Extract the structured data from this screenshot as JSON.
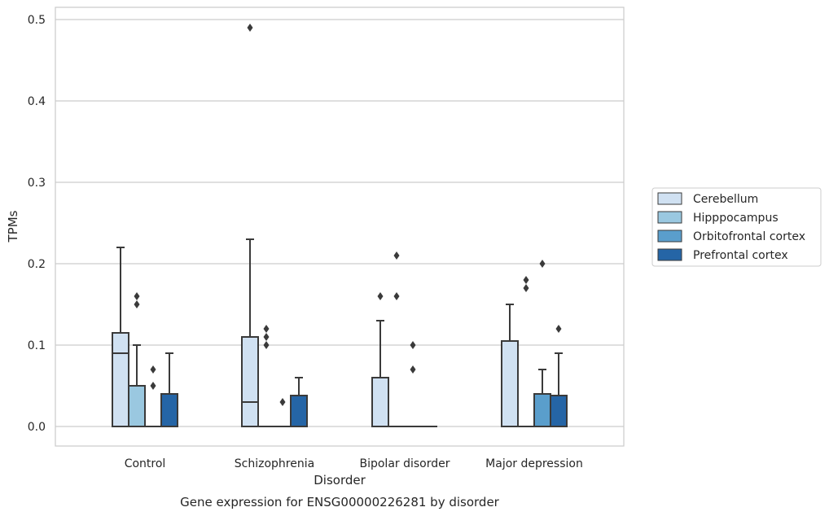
{
  "caption": "Gene expression for ENSG00000226281 by disorder",
  "chart_data": {
    "type": "box",
    "xlabel": "Disorder",
    "ylabel": "TPMs",
    "ylim": [
      -0.024,
      0.515
    ],
    "yticks": [
      0.0,
      0.1,
      0.2,
      0.3,
      0.4,
      0.5
    ],
    "ytick_labels": [
      "0.0",
      "0.1",
      "0.2",
      "0.3",
      "0.4",
      "0.5"
    ],
    "grid": "horizontal",
    "legend_position": "right",
    "categories": [
      "Control",
      "Schizophrenia",
      "Bipolar disorder",
      "Major depression"
    ],
    "series": [
      {
        "name": "Cerebellum",
        "color": "#d0e1f2",
        "boxes": [
          {
            "q1": 0,
            "median": 0.09,
            "q3": 0.115,
            "whisker_low": 0,
            "whisker_high": 0.22,
            "outliers": []
          },
          {
            "q1": 0,
            "median": 0.03,
            "q3": 0.11,
            "whisker_low": 0,
            "whisker_high": 0.23,
            "outliers": [
              0.49
            ]
          },
          {
            "q1": 0,
            "median": 0,
            "q3": 0.06,
            "whisker_low": 0,
            "whisker_high": 0.13,
            "outliers": [
              0.16
            ]
          },
          {
            "q1": 0,
            "median": 0,
            "q3": 0.105,
            "whisker_low": 0,
            "whisker_high": 0.15,
            "outliers": []
          }
        ]
      },
      {
        "name": "Hipppocampus",
        "color": "#9ac8e0",
        "boxes": [
          {
            "q1": 0,
            "median": 0,
            "q3": 0.05,
            "whisker_low": 0,
            "whisker_high": 0.1,
            "outliers": [
              0.15,
              0.16
            ]
          },
          {
            "q1": 0,
            "median": 0,
            "q3": 0,
            "whisker_low": 0,
            "whisker_high": 0,
            "outliers": [
              0.1,
              0.11,
              0.12
            ]
          },
          {
            "q1": 0,
            "median": 0,
            "q3": 0,
            "whisker_low": 0,
            "whisker_high": 0,
            "outliers": [
              0.16,
              0.21
            ]
          },
          {
            "q1": 0,
            "median": 0,
            "q3": 0,
            "whisker_low": 0,
            "whisker_high": 0,
            "outliers": [
              0.17,
              0.18
            ]
          }
        ]
      },
      {
        "name": "Orbitofrontal cortex",
        "color": "#5a9ecc",
        "boxes": [
          {
            "q1": 0,
            "median": 0,
            "q3": 0,
            "whisker_low": 0,
            "whisker_high": 0,
            "outliers": [
              0.05,
              0.07
            ]
          },
          {
            "q1": 0,
            "median": 0,
            "q3": 0,
            "whisker_low": 0,
            "whisker_high": 0,
            "outliers": [
              0.03
            ]
          },
          {
            "q1": 0,
            "median": 0,
            "q3": 0,
            "whisker_low": 0,
            "whisker_high": 0,
            "outliers": [
              0.07,
              0.1
            ]
          },
          {
            "q1": 0,
            "median": 0,
            "q3": 0.04,
            "whisker_low": 0,
            "whisker_high": 0.07,
            "outliers": [
              0.2
            ]
          }
        ]
      },
      {
        "name": "Prefrontal cortex",
        "color": "#2565a6",
        "boxes": [
          {
            "q1": 0,
            "median": 0,
            "q3": 0.04,
            "whisker_low": 0,
            "whisker_high": 0.09,
            "outliers": []
          },
          {
            "q1": 0,
            "median": 0,
            "q3": 0.038,
            "whisker_low": 0,
            "whisker_high": 0.06,
            "outliers": []
          },
          {
            "q1": 0,
            "median": 0,
            "q3": 0,
            "whisker_low": 0,
            "whisker_high": 0,
            "outliers": []
          },
          {
            "q1": 0,
            "median": 0,
            "q3": 0.038,
            "whisker_low": 0,
            "whisker_high": 0.09,
            "outliers": [
              0.12
            ]
          }
        ]
      }
    ]
  }
}
